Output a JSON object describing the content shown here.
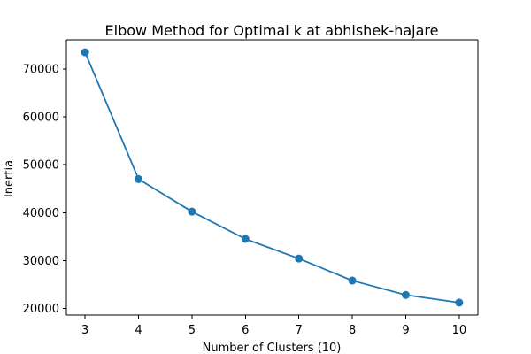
{
  "chart_data": {
    "type": "line",
    "title": "Elbow Method for Optimal k at abhishek-hajare",
    "xlabel": "Number of Clusters (10)",
    "ylabel": "Inertia",
    "x": [
      3,
      4,
      5,
      6,
      7,
      8,
      9,
      10
    ],
    "series": [
      {
        "values": [
          73500,
          47000,
          40200,
          34500,
          30400,
          25800,
          22800,
          21200
        ],
        "color": "#1f77b4",
        "marker": "circle"
      }
    ],
    "xticks": [
      "3",
      "4",
      "5",
      "6",
      "7",
      "8",
      "9",
      "10"
    ],
    "yticks": [
      "20000",
      "30000",
      "40000",
      "50000",
      "60000",
      "70000"
    ],
    "xlim": [
      2.65,
      10.35
    ],
    "ylim": [
      18600,
      76100
    ],
    "grid": false
  }
}
